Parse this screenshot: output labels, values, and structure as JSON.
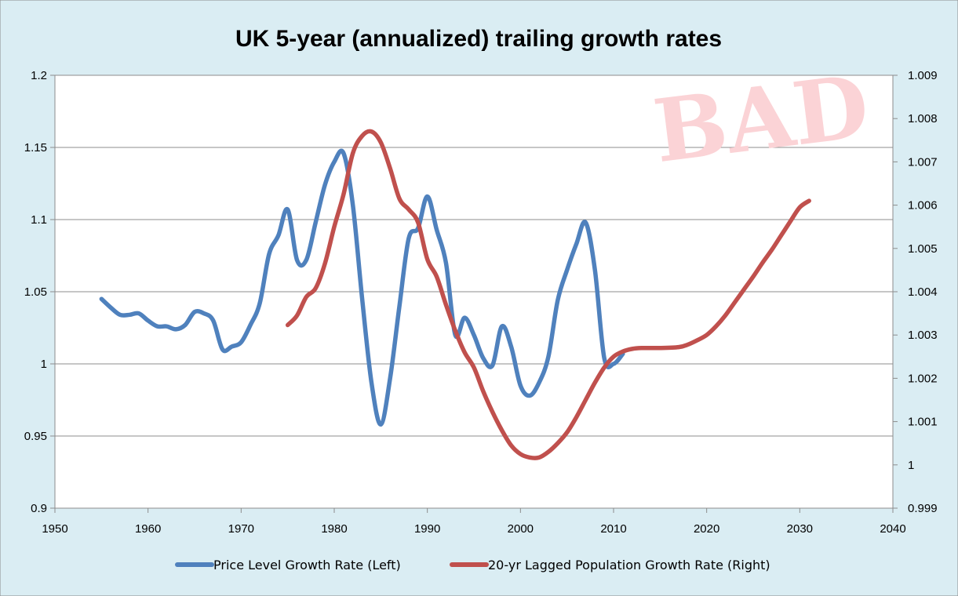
{
  "chart_data": {
    "type": "line",
    "title": "UK 5-year (annualized) trailing growth rates",
    "watermark": "BAD",
    "colors": {
      "background": "#daedf3",
      "plot_area": "#ffffff",
      "stamp": "#fbd3d6",
      "price_series": "#4f81bd",
      "population_series": "#c0504d"
    },
    "grid": true,
    "legend_position": "bottom",
    "x_axis": {
      "ticks": [
        1950,
        1960,
        1970,
        1980,
        1990,
        2000,
        2010,
        2020,
        2030,
        2040
      ],
      "range": [
        1950,
        2040
      ]
    },
    "y_left": {
      "ticks": [
        "0.9",
        "0.95",
        "1",
        "1.05",
        "1.1",
        "1.15",
        "1.2"
      ],
      "range": [
        0.9,
        1.2
      ]
    },
    "y_right": {
      "ticks": [
        "0.999",
        "1",
        "1.001",
        "1.002",
        "1.003",
        "1.004",
        "1.005",
        "1.006",
        "1.007",
        "1.008",
        "1.009"
      ],
      "range": [
        0.999,
        1.009
      ]
    },
    "series": [
      {
        "name": "Price Level Growth Rate (Left)",
        "axis": "left",
        "color": "#4f81bd",
        "points": [
          [
            1955,
            1.045
          ],
          [
            1956,
            1.039
          ],
          [
            1957,
            1.034
          ],
          [
            1958,
            1.034
          ],
          [
            1959,
            1.035
          ],
          [
            1960,
            1.03
          ],
          [
            1961,
            1.026
          ],
          [
            1962,
            1.026
          ],
          [
            1963,
            1.024
          ],
          [
            1964,
            1.027
          ],
          [
            1965,
            1.036
          ],
          [
            1966,
            1.035
          ],
          [
            1967,
            1.03
          ],
          [
            1968,
            1.01
          ],
          [
            1969,
            1.012
          ],
          [
            1970,
            1.015
          ],
          [
            1971,
            1.027
          ],
          [
            1972,
            1.042
          ],
          [
            1973,
            1.076
          ],
          [
            1974,
            1.089
          ],
          [
            1975,
            1.107
          ],
          [
            1976,
            1.072
          ],
          [
            1977,
            1.072
          ],
          [
            1978,
            1.098
          ],
          [
            1979,
            1.124
          ],
          [
            1980,
            1.14
          ],
          [
            1981,
            1.146
          ],
          [
            1982,
            1.11
          ],
          [
            1983,
            1.045
          ],
          [
            1984,
            0.987
          ],
          [
            1985,
            0.958
          ],
          [
            1986,
            0.99
          ],
          [
            1987,
            1.04
          ],
          [
            1988,
            1.087
          ],
          [
            1989,
            1.094
          ],
          [
            1990,
            1.116
          ],
          [
            1991,
            1.093
          ],
          [
            1992,
            1.07
          ],
          [
            1993,
            1.02
          ],
          [
            1994,
            1.032
          ],
          [
            1995,
            1.02
          ],
          [
            1996,
            1.004
          ],
          [
            1997,
            0.999
          ],
          [
            1998,
            1.026
          ],
          [
            1999,
            1.012
          ],
          [
            2000,
            0.985
          ],
          [
            2001,
            0.978
          ],
          [
            2002,
            0.987
          ],
          [
            2003,
            1.005
          ],
          [
            2004,
            1.044
          ],
          [
            2005,
            1.065
          ],
          [
            2006,
            1.083
          ],
          [
            2007,
            1.098
          ],
          [
            2008,
            1.065
          ],
          [
            2009,
            1.004
          ],
          [
            2010,
            1.0
          ],
          [
            2011,
            1.007
          ]
        ]
      },
      {
        "name": "20-yr Lagged Population Growth Rate (Right)",
        "axis": "right",
        "color": "#c0504d",
        "points": [
          [
            1975,
            1.00323
          ],
          [
            1976,
            1.00345
          ],
          [
            1977,
            1.00388
          ],
          [
            1978,
            1.00408
          ],
          [
            1979,
            1.00465
          ],
          [
            1980,
            1.0055
          ],
          [
            1981,
            1.00625
          ],
          [
            1982,
            1.0072
          ],
          [
            1983,
            1.0076
          ],
          [
            1984,
            1.0077
          ],
          [
            1985,
            1.00745
          ],
          [
            1986,
            1.00685
          ],
          [
            1987,
            1.00615
          ],
          [
            1988,
            1.0059
          ],
          [
            1989,
            1.0056
          ],
          [
            1990,
            1.00475
          ],
          [
            1991,
            1.00435
          ],
          [
            1992,
            1.0037
          ],
          [
            1993,
            1.0031
          ],
          [
            1994,
            1.0026
          ],
          [
            1995,
            1.00225
          ],
          [
            1996,
            1.0017
          ],
          [
            1997,
            1.00122
          ],
          [
            1998,
            1.0008
          ],
          [
            1999,
            1.00045
          ],
          [
            2000,
            1.00025
          ],
          [
            2001,
            1.00017
          ],
          [
            2002,
            1.00017
          ],
          [
            2003,
            1.0003
          ],
          [
            2004,
            1.0005
          ],
          [
            2005,
            1.00075
          ],
          [
            2006,
            1.0011
          ],
          [
            2007,
            1.0015
          ],
          [
            2008,
            1.0019
          ],
          [
            2009,
            1.00225
          ],
          [
            2010,
            1.0025
          ],
          [
            2011,
            1.00262
          ],
          [
            2012,
            1.00268
          ],
          [
            2013,
            1.0027
          ],
          [
            2015,
            1.0027
          ],
          [
            2017,
            1.00272
          ],
          [
            2018,
            1.00278
          ],
          [
            2019,
            1.00288
          ],
          [
            2020,
            1.003
          ],
          [
            2021,
            1.0032
          ],
          [
            2022,
            1.00345
          ],
          [
            2023,
            1.00375
          ],
          [
            2024,
            1.00405
          ],
          [
            2025,
            1.00435
          ],
          [
            2026,
            1.00467
          ],
          [
            2027,
            1.00497
          ],
          [
            2028,
            1.0053
          ],
          [
            2029,
            1.00563
          ],
          [
            2030,
            1.00595
          ],
          [
            2031,
            1.0061
          ]
        ]
      }
    ]
  }
}
